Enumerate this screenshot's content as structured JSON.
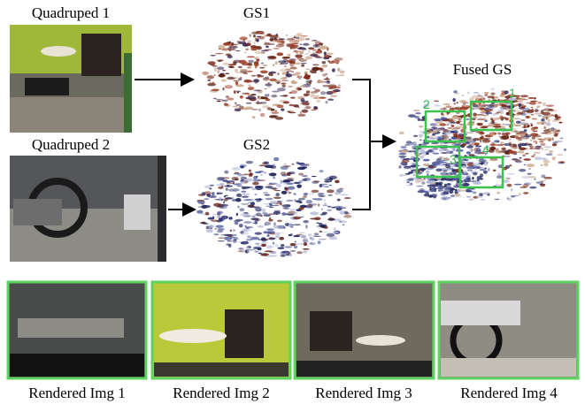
{
  "inputs": [
    {
      "label": "Quadruped 1",
      "gs": "GS1"
    },
    {
      "label": "Quadruped 2",
      "gs": "GS2"
    }
  ],
  "fused": {
    "label": "Fused GS",
    "regions": [
      "1",
      "2",
      "3",
      "4"
    ]
  },
  "renders": [
    "Rendered Img 1",
    "Rendered Img 2",
    "Rendered Img 3",
    "Rendered Img 4"
  ]
}
